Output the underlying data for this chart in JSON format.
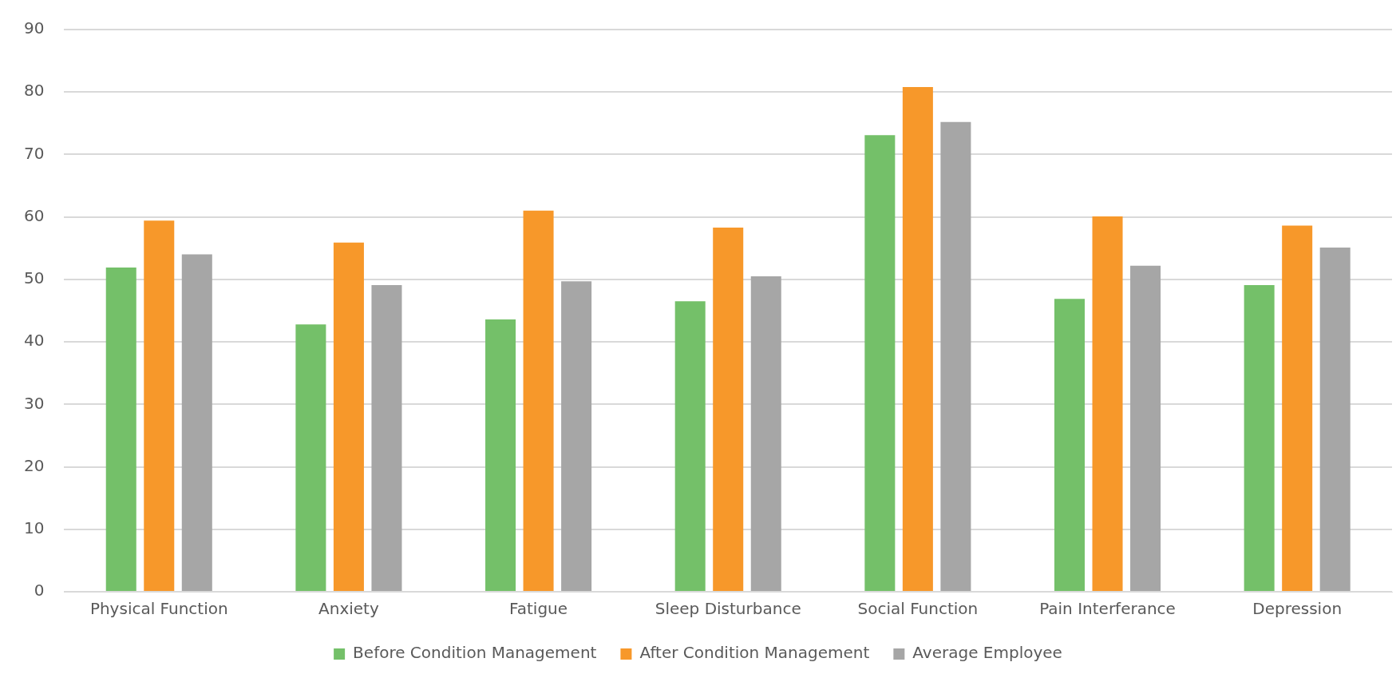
{
  "chart_data": {
    "type": "bar",
    "categories": [
      "Physical Function",
      "Anxiety",
      "Fatigue",
      "Sleep Disturbance",
      "Social Function",
      "Pain Interferance",
      "Depression"
    ],
    "series": [
      {
        "name": "Before Condition Management",
        "color": "#74c069",
        "values": [
          51.9,
          42.8,
          43.6,
          46.5,
          73.1,
          46.9,
          49.1
        ]
      },
      {
        "name": "After Condition Management",
        "color": "#f7982a",
        "values": [
          59.4,
          55.9,
          61.0,
          58.3,
          80.8,
          60.1,
          58.6
        ]
      },
      {
        "name": "Average Employee",
        "color": "#a6a6a6",
        "values": [
          54.0,
          49.1,
          49.7,
          50.5,
          75.2,
          52.2,
          55.1
        ]
      }
    ],
    "ylim": [
      0,
      90
    ],
    "yticks": [
      0,
      10,
      20,
      30,
      40,
      50,
      60,
      70,
      80,
      90
    ],
    "grid": "y",
    "legend": "bottom"
  }
}
